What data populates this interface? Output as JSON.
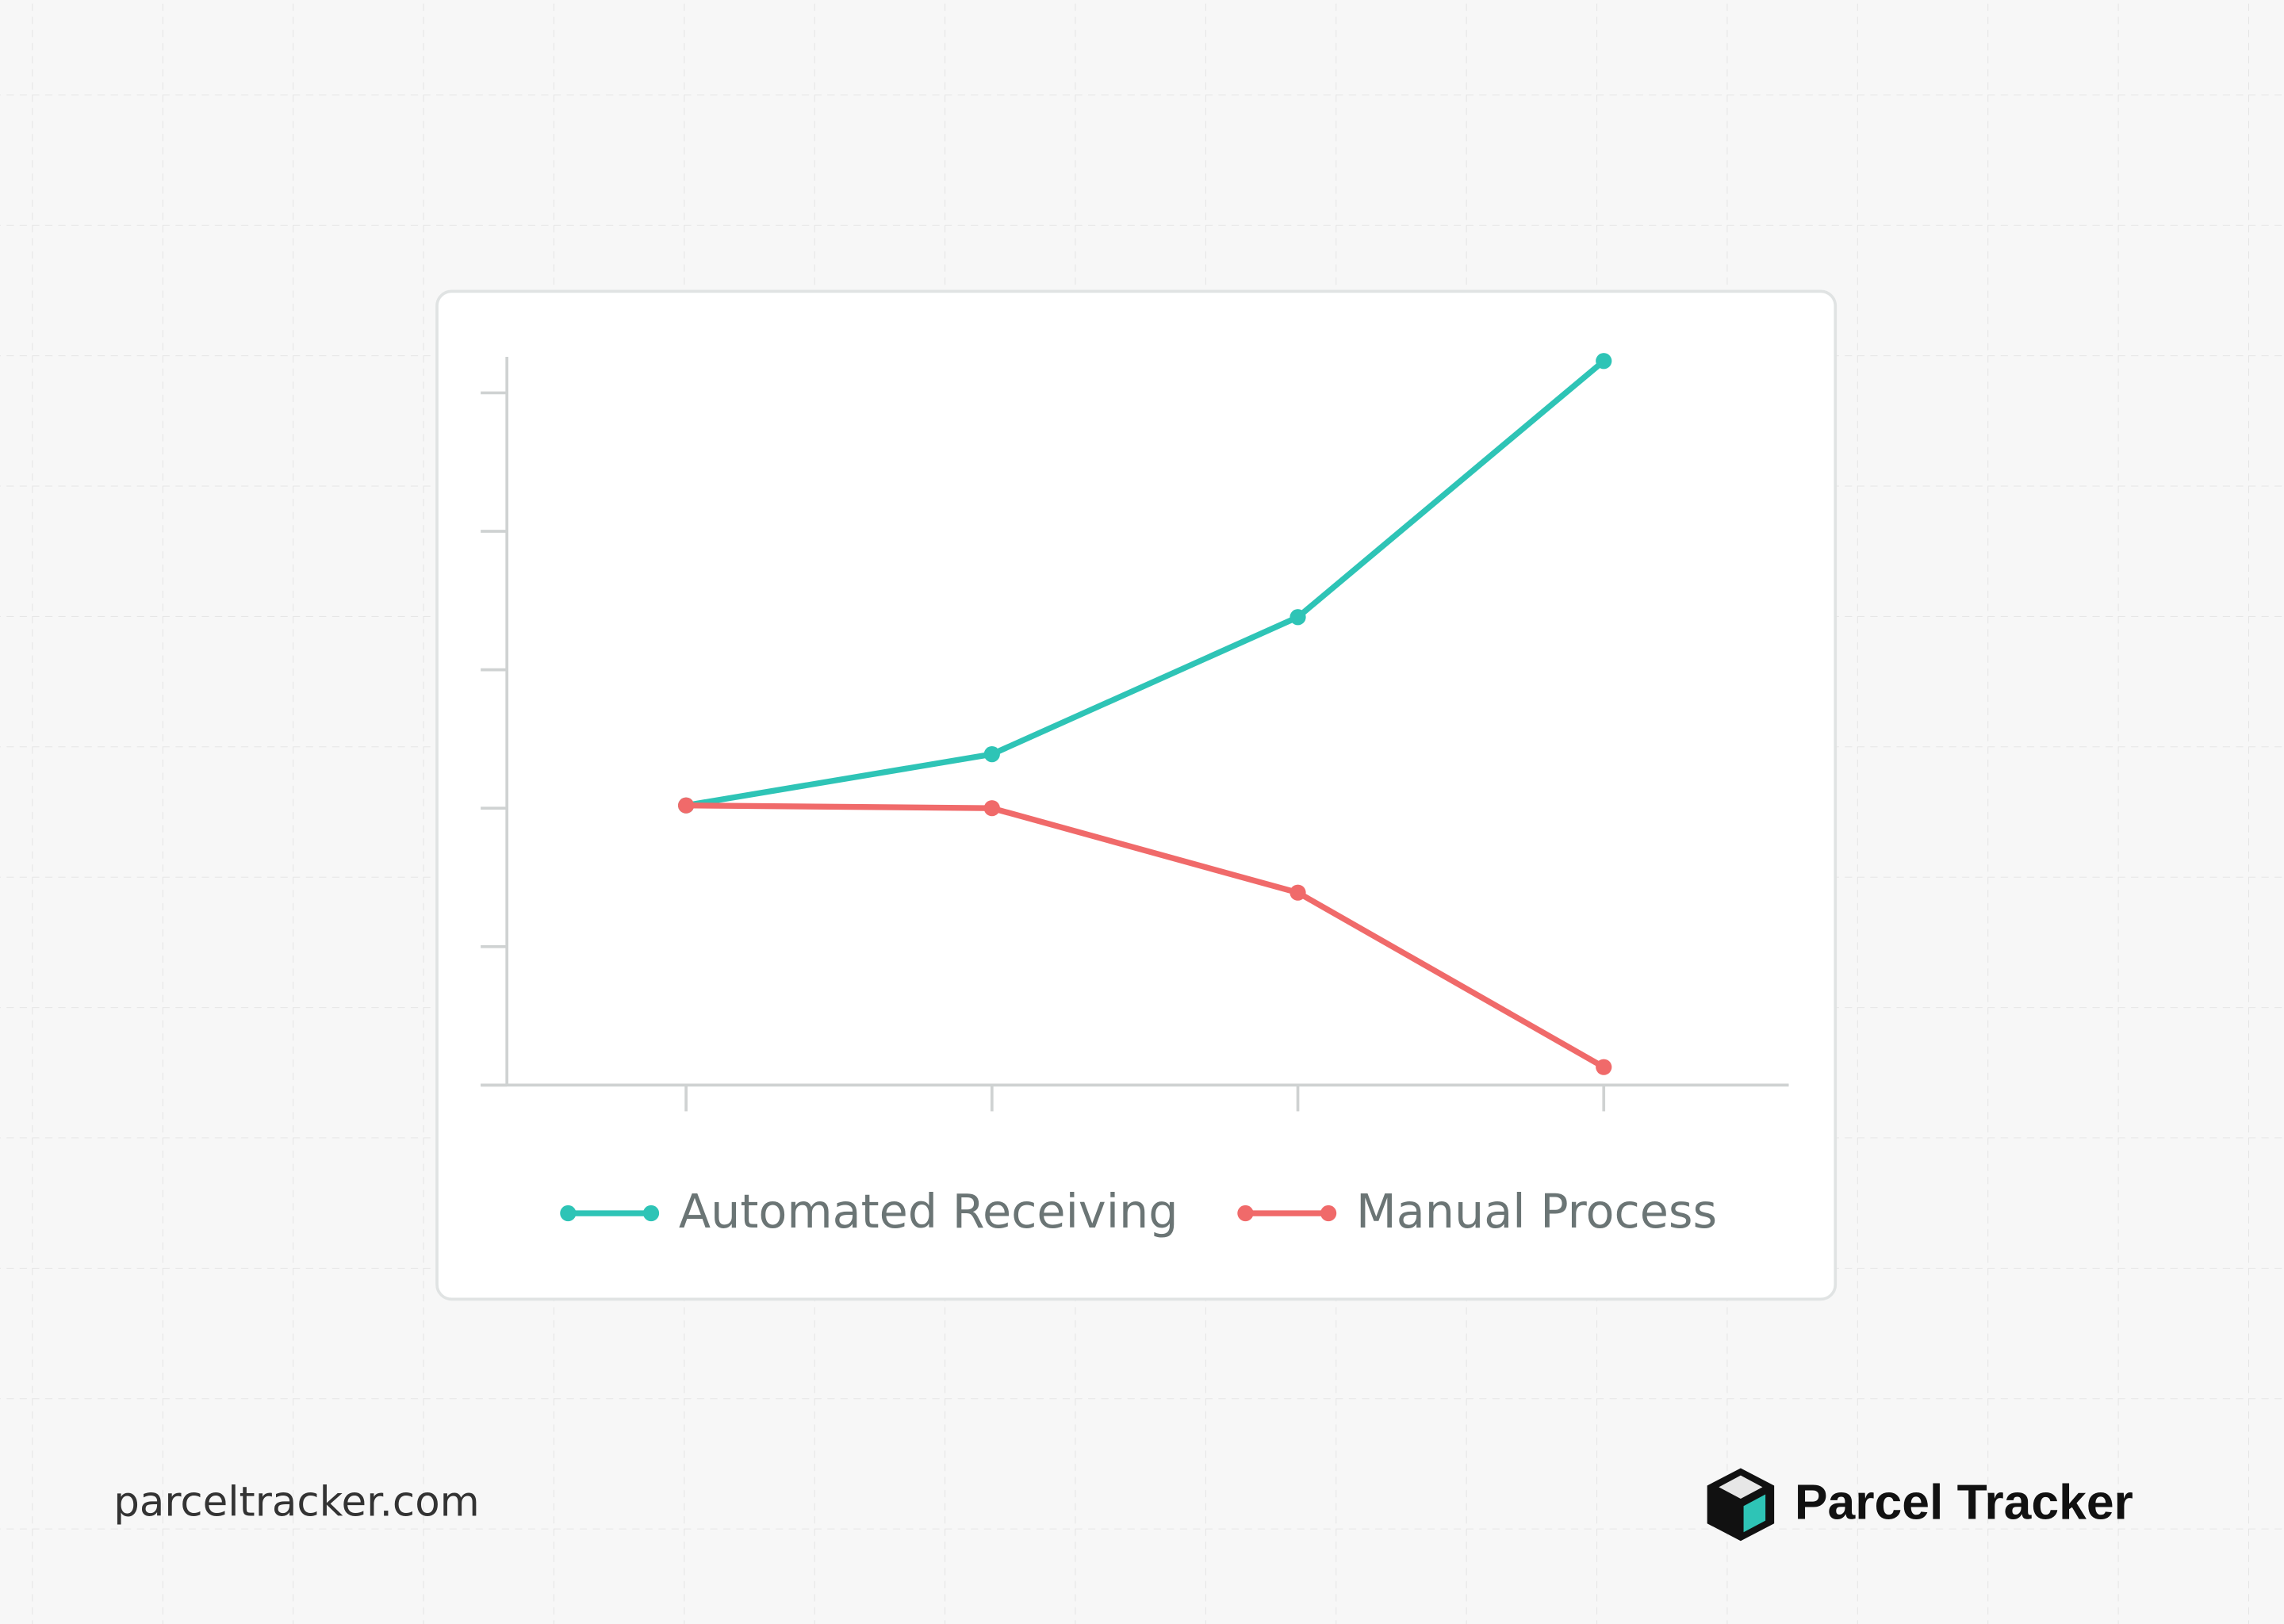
{
  "chart_data": {
    "type": "line",
    "categories": [
      null,
      null,
      null,
      null
    ],
    "series": [
      {
        "name": "Automated Receiving",
        "color": "#2ec4b6",
        "values": [
          2.02,
          2.39,
          3.38,
          5.23
        ]
      },
      {
        "name": "Manual Process",
        "color": "#f06a6a",
        "values": [
          2.02,
          2.0,
          1.39,
          0.13
        ]
      }
    ],
    "ylim": [
      0,
      5.26
    ],
    "yticks": [
      0,
      1,
      2,
      3,
      4,
      5
    ],
    "legend": "bottom"
  },
  "footer": {
    "url": "parceltracker.com",
    "brand": "Parcel Tracker"
  }
}
